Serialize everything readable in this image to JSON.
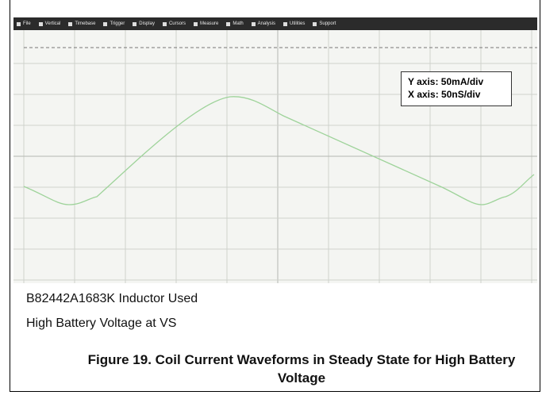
{
  "menu": [
    "File",
    "Vertical",
    "Timebase",
    "Trigger",
    "Display",
    "Cursors",
    "Measure",
    "Math",
    "Analysis",
    "Utilities",
    "Support"
  ],
  "annotation": [
    "Y axis: 50mA/div",
    "X axis: 50nS/div"
  ],
  "notes": [
    "B82442A1683K Inductor Used",
    "High Battery Voltage at VS"
  ],
  "caption": "Figure 19. Coil Current Waveforms in Steady State for High Battery Voltage"
}
